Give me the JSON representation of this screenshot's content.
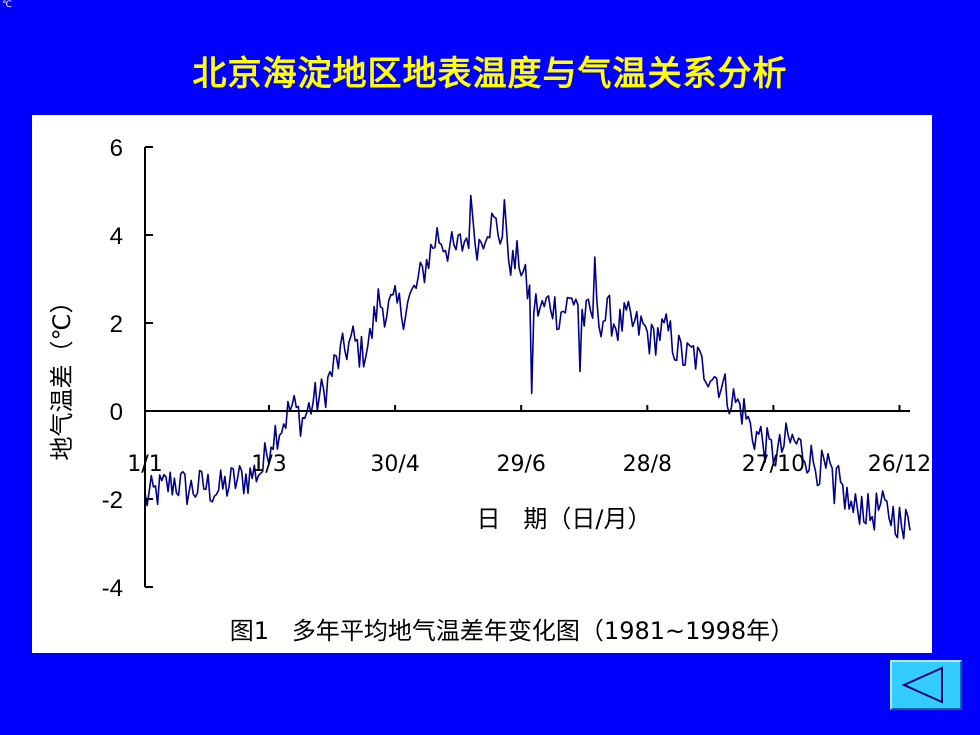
{
  "corner_mark": "℃",
  "title": "北京海淀地区地表温度与气温关系分析",
  "nav": {
    "icon": "triangle-left-icon",
    "color": "#33ccff"
  },
  "colors": {
    "background": "#0000ff",
    "title": "#ffff00",
    "panel": "#ffffff",
    "series": "#00008b"
  },
  "chart_data": {
    "type": "line",
    "title": "",
    "caption": "图1   多年平均地气温差年变化图（1981~1998年）",
    "xlabel": "日   期（日/月）",
    "ylabel": "地气温差（℃）",
    "ylim": [
      -4,
      6
    ],
    "yticks": [
      6,
      4,
      2,
      0,
      -2,
      -4
    ],
    "xlim": [
      1,
      365
    ],
    "xticks": [
      {
        "day": 1,
        "label": "1/1"
      },
      {
        "day": 60,
        "label": "1/3"
      },
      {
        "day": 120,
        "label": "30/4"
      },
      {
        "day": 180,
        "label": "29/6"
      },
      {
        "day": 240,
        "label": "28/8"
      },
      {
        "day": 300,
        "label": "27/10"
      },
      {
        "day": 360,
        "label": "26/12"
      }
    ],
    "grid": false,
    "series": [
      {
        "name": "",
        "x": [
          1,
          8,
          15,
          22,
          29,
          36,
          43,
          50,
          57,
          61,
          66,
          71,
          76,
          81,
          86,
          91,
          96,
          100,
          104,
          108,
          112,
          116,
          120,
          124,
          128,
          132,
          136,
          140,
          144,
          148,
          152,
          156,
          160,
          164,
          168,
          172,
          176,
          179,
          182,
          186,
          190,
          194,
          198,
          202,
          206,
          210,
          214,
          218,
          222,
          226,
          230,
          234,
          238,
          242,
          246,
          250,
          254,
          258,
          262,
          266,
          270,
          274,
          278,
          282,
          286,
          290,
          294,
          298,
          302,
          306,
          310,
          314,
          318,
          322,
          326,
          330,
          334,
          338,
          342,
          346,
          350,
          354,
          358,
          362,
          365
        ],
        "y": [
          -2.0,
          -1.8,
          -1.6,
          -1.8,
          -1.7,
          -1.8,
          -1.6,
          -1.5,
          -1.3,
          -0.6,
          -0.3,
          0.1,
          -0.2,
          0.2,
          0.4,
          1.0,
          1.4,
          1.6,
          1.3,
          1.6,
          2.5,
          2.3,
          2.4,
          2.3,
          2.6,
          3.0,
          3.5,
          4.0,
          3.8,
          3.6,
          3.8,
          4.1,
          3.8,
          4.3,
          4.2,
          3.9,
          3.3,
          3.5,
          2.9,
          2.4,
          2.3,
          2.5,
          2.2,
          2.4,
          2.6,
          2.1,
          2.2,
          2.1,
          2.2,
          1.9,
          2.1,
          1.9,
          1.9,
          1.6,
          1.8,
          1.8,
          1.4,
          1.2,
          1.3,
          1.0,
          0.9,
          0.7,
          0.4,
          0.2,
          0.0,
          -0.5,
          -0.6,
          -0.9,
          -1.0,
          -0.7,
          -0.7,
          -0.9,
          -1.1,
          -1.3,
          -1.4,
          -1.6,
          -1.9,
          -2.3,
          -2.1,
          -2.4,
          -2.2,
          -2.3,
          -2.4,
          -2.6,
          -2.5
        ]
      }
    ],
    "annotations": [
      {
        "x": 185,
        "y": 0.4
      },
      {
        "x": 208,
        "y": 0.9
      },
      {
        "x": 215,
        "y": 3.5
      },
      {
        "x": 156,
        "y": 4.9
      },
      {
        "x": 172,
        "y": 4.8
      },
      {
        "x": 329,
        "y": -2.1
      },
      {
        "x": 362,
        "y": -2.9
      }
    ]
  }
}
